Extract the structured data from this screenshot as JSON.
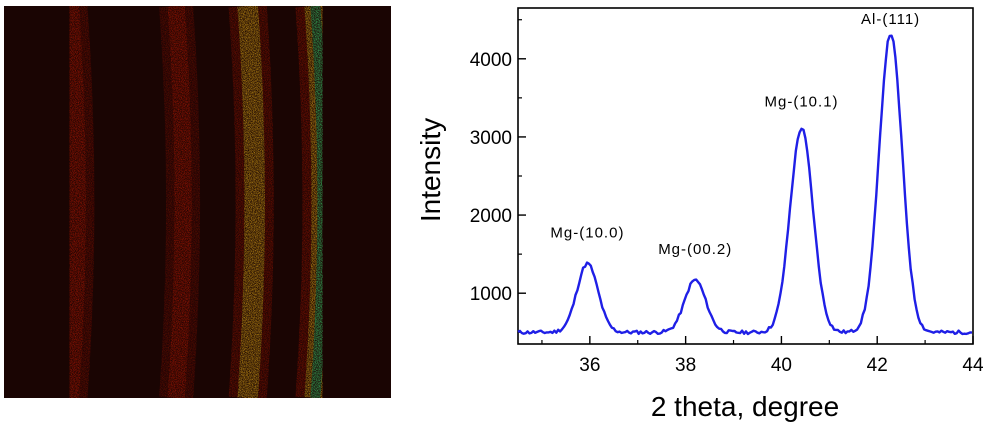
{
  "figure": {
    "left_panel": {
      "kind": "2D diffraction pattern (color map)",
      "colors": {
        "background": "#1a0503",
        "low": "#c81a0a",
        "mid": "#f6c21a",
        "high": "#35e07a"
      },
      "rings": [
        {
          "position_fraction": 0.18,
          "intensity": 0.55
        },
        {
          "position_fraction": 0.455,
          "intensity": 0.4
        },
        {
          "position_fraction": 0.64,
          "intensity": 0.82
        },
        {
          "position_fraction": 0.815,
          "intensity": 1.0
        }
      ]
    }
  },
  "chart_data": {
    "type": "line",
    "title": "",
    "xlabel": "2 theta, degree",
    "ylabel": "Intensity",
    "xlim": [
      34.5,
      44
    ],
    "ylim": [
      350,
      4650
    ],
    "x_ticks": [
      36,
      38,
      40,
      42,
      44
    ],
    "y_ticks": [
      1000,
      2000,
      3000,
      4000
    ],
    "grid": false,
    "line_color": "#1f1fe6",
    "series": [
      {
        "baseline": 500,
        "peaks": [
          {
            "center": 35.95,
            "height": 1380,
            "label": "Mg-(10.0)"
          },
          {
            "center": 38.2,
            "height": 1170,
            "label": "Mg-(00.2)"
          },
          {
            "center": 40.42,
            "height": 3110,
            "label": "Mg-(10.1)"
          },
          {
            "center": 42.28,
            "height": 4320,
            "label": "Al-(111)"
          }
        ]
      }
    ]
  }
}
